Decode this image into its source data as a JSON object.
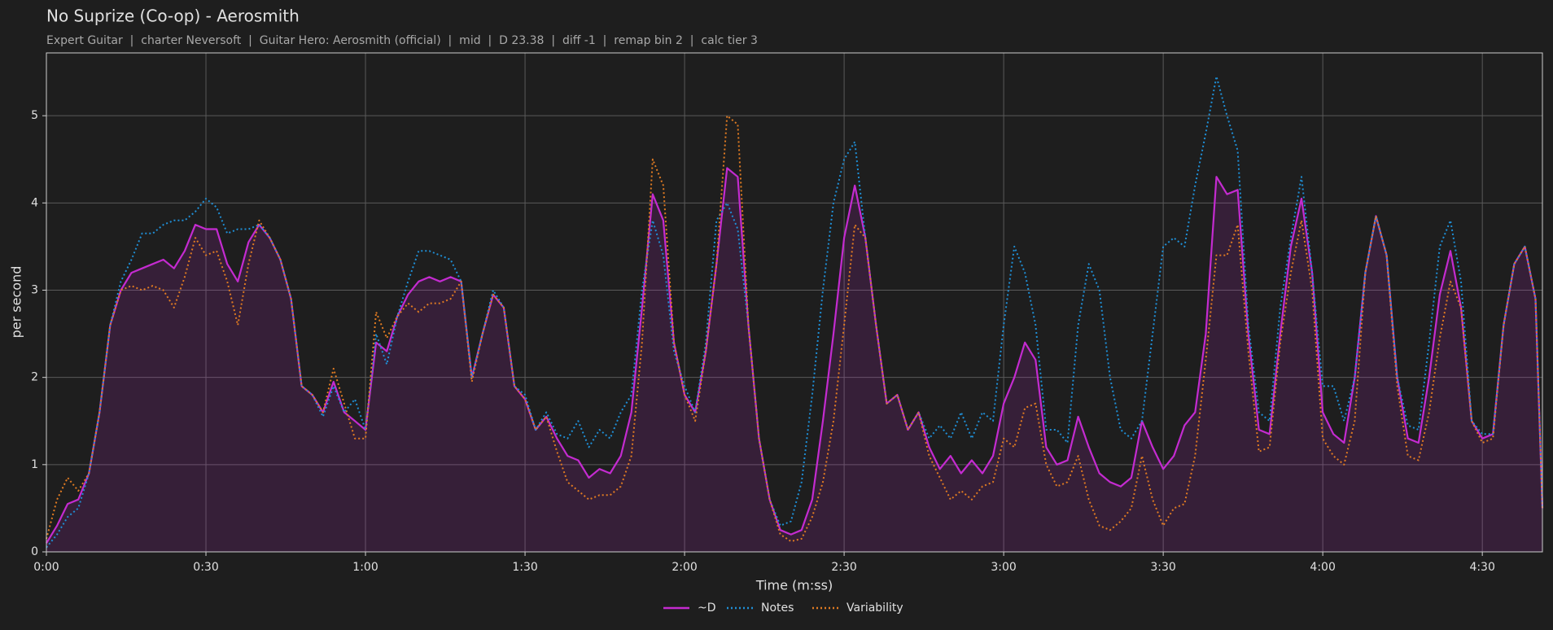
{
  "chart_data": {
    "type": "line",
    "title": "No Suprize (Co-op) - Aerosmith",
    "subtitle": "Expert Guitar  |  charter Neversoft  |  Guitar Hero: Aerosmith (official)  |  mid  |  D 23.38  |  diff -1  |  remap bin 2  |  calc tier 3",
    "x_label": "Time (m:ss)",
    "y_label": "per second",
    "xlim": [
      0,
      281.3
    ],
    "ylim": [
      0,
      5.72
    ],
    "xticks": [
      {
        "value": 0,
        "label": "0:00"
      },
      {
        "value": 30,
        "label": "0:30"
      },
      {
        "value": 60,
        "label": "1:00"
      },
      {
        "value": 90,
        "label": "1:30"
      },
      {
        "value": 120,
        "label": "2:00"
      },
      {
        "value": 150,
        "label": "2:30"
      },
      {
        "value": 180,
        "label": "3:00"
      },
      {
        "value": 210,
        "label": "3:30"
      },
      {
        "value": 240,
        "label": "4:00"
      },
      {
        "value": 270,
        "label": "4:30"
      }
    ],
    "yticks": [
      0,
      1,
      2,
      3,
      4,
      5
    ],
    "grid": true,
    "legend": "bottom",
    "x": [
      0,
      2,
      4,
      6,
      8,
      10,
      12,
      14,
      16,
      18,
      20,
      22,
      24,
      26,
      28,
      30,
      32,
      34,
      36,
      38,
      40,
      42,
      44,
      46,
      48,
      50,
      52,
      54,
      56,
      58,
      60,
      62,
      64,
      66,
      68,
      70,
      72,
      74,
      76,
      78,
      80,
      82,
      84,
      86,
      88,
      90,
      92,
      94,
      96,
      98,
      100,
      102,
      104,
      106,
      108,
      110,
      112,
      114,
      116,
      118,
      120,
      122,
      124,
      126,
      128,
      130,
      132,
      134,
      136,
      138,
      140,
      142,
      144,
      146,
      148,
      150,
      152,
      154,
      156,
      158,
      160,
      162,
      164,
      166,
      168,
      170,
      172,
      174,
      176,
      178,
      180,
      182,
      184,
      186,
      188,
      190,
      192,
      194,
      196,
      198,
      200,
      202,
      204,
      206,
      208,
      210,
      212,
      214,
      216,
      218,
      220,
      222,
      224,
      226,
      228,
      230,
      232,
      234,
      236,
      238,
      240,
      242,
      244,
      246,
      248,
      250,
      252,
      254,
      256,
      258,
      260,
      262,
      264,
      266,
      268,
      270,
      272,
      274,
      276,
      278,
      280,
      281.3
    ],
    "series": [
      {
        "name": "~D",
        "color": "#c42bd0",
        "dash": "solid",
        "fill": true,
        "values": [
          0.1,
          0.3,
          0.55,
          0.6,
          0.9,
          1.6,
          2.6,
          3.0,
          3.2,
          3.25,
          3.3,
          3.35,
          3.25,
          3.45,
          3.75,
          3.7,
          3.7,
          3.3,
          3.1,
          3.55,
          3.75,
          3.6,
          3.35,
          2.9,
          1.9,
          1.8,
          1.6,
          1.95,
          1.6,
          1.5,
          1.4,
          2.4,
          2.3,
          2.7,
          2.95,
          3.1,
          3.15,
          3.1,
          3.15,
          3.1,
          2.0,
          2.5,
          2.95,
          2.8,
          1.9,
          1.75,
          1.4,
          1.55,
          1.3,
          1.1,
          1.05,
          0.85,
          0.95,
          0.9,
          1.1,
          1.6,
          2.8,
          4.1,
          3.8,
          2.4,
          1.8,
          1.6,
          2.3,
          3.3,
          4.4,
          4.3,
          2.6,
          1.3,
          0.6,
          0.25,
          0.2,
          0.25,
          0.6,
          1.5,
          2.5,
          3.6,
          4.2,
          3.6,
          2.6,
          1.7,
          1.8,
          1.4,
          1.6,
          1.2,
          0.95,
          1.1,
          0.9,
          1.05,
          0.9,
          1.1,
          1.7,
          2.0,
          2.4,
          2.2,
          1.2,
          1.0,
          1.05,
          1.55,
          1.2,
          0.9,
          0.8,
          0.75,
          0.85,
          1.5,
          1.2,
          0.95,
          1.1,
          1.45,
          1.6,
          2.5,
          4.3,
          4.1,
          4.15,
          2.5,
          1.4,
          1.35,
          2.5,
          3.5,
          4.05,
          3.2,
          1.6,
          1.35,
          1.25,
          2.0,
          3.2,
          3.85,
          3.4,
          2.0,
          1.3,
          1.25,
          2.0,
          2.95,
          3.45,
          2.8,
          1.5,
          1.3,
          1.35,
          2.6,
          3.3,
          3.5,
          2.9,
          0.5
        ]
      },
      {
        "name": "Notes",
        "color": "#1f8fd6",
        "dash": "dotted",
        "fill": false,
        "values": [
          0.05,
          0.2,
          0.4,
          0.5,
          0.9,
          1.6,
          2.6,
          3.1,
          3.35,
          3.65,
          3.65,
          3.75,
          3.8,
          3.8,
          3.9,
          4.05,
          3.95,
          3.65,
          3.7,
          3.7,
          3.75,
          3.6,
          3.35,
          2.9,
          1.9,
          1.8,
          1.55,
          1.9,
          1.6,
          1.75,
          1.4,
          2.5,
          2.15,
          2.7,
          3.1,
          3.45,
          3.45,
          3.4,
          3.35,
          3.1,
          2.0,
          2.5,
          3.0,
          2.8,
          1.9,
          1.8,
          1.4,
          1.6,
          1.35,
          1.3,
          1.5,
          1.2,
          1.4,
          1.3,
          1.6,
          1.8,
          3.0,
          3.8,
          3.4,
          2.3,
          1.9,
          1.6,
          2.4,
          3.8,
          4.0,
          3.7,
          2.6,
          1.3,
          0.6,
          0.3,
          0.35,
          0.8,
          1.8,
          3.0,
          4.0,
          4.5,
          4.7,
          3.6,
          2.6,
          1.7,
          1.8,
          1.4,
          1.6,
          1.3,
          1.45,
          1.3,
          1.6,
          1.3,
          1.6,
          1.5,
          2.6,
          3.5,
          3.2,
          2.6,
          1.4,
          1.4,
          1.25,
          2.6,
          3.3,
          3.0,
          2.0,
          1.4,
          1.3,
          1.5,
          2.5,
          3.5,
          3.6,
          3.5,
          4.2,
          4.8,
          5.45,
          5.0,
          4.6,
          2.6,
          1.6,
          1.5,
          2.8,
          3.6,
          4.3,
          3.2,
          1.9,
          1.9,
          1.5,
          2.0,
          3.2,
          3.85,
          3.4,
          2.0,
          1.45,
          1.4,
          2.4,
          3.5,
          3.8,
          3.1,
          1.5,
          1.35,
          1.35,
          2.6,
          3.3,
          3.5,
          2.9,
          0.5
        ]
      },
      {
        "name": "Variability",
        "color": "#e07b22",
        "dash": "dotted",
        "fill": false,
        "values": [
          0.15,
          0.6,
          0.85,
          0.7,
          0.9,
          1.6,
          2.6,
          3.0,
          3.05,
          3.0,
          3.05,
          3.0,
          2.8,
          3.15,
          3.6,
          3.4,
          3.45,
          3.1,
          2.6,
          3.3,
          3.8,
          3.6,
          3.35,
          2.9,
          1.9,
          1.8,
          1.6,
          2.1,
          1.7,
          1.3,
          1.3,
          2.75,
          2.45,
          2.7,
          2.85,
          2.75,
          2.85,
          2.85,
          2.9,
          3.1,
          1.95,
          2.5,
          2.95,
          2.8,
          1.9,
          1.75,
          1.4,
          1.55,
          1.15,
          0.8,
          0.7,
          0.6,
          0.65,
          0.65,
          0.75,
          1.1,
          2.4,
          4.5,
          4.2,
          2.4,
          1.8,
          1.5,
          2.3,
          3.3,
          5.0,
          4.9,
          2.6,
          1.3,
          0.6,
          0.2,
          0.12,
          0.15,
          0.4,
          0.8,
          1.5,
          2.6,
          3.75,
          3.6,
          2.6,
          1.7,
          1.8,
          1.4,
          1.6,
          1.1,
          0.85,
          0.6,
          0.7,
          0.6,
          0.75,
          0.8,
          1.3,
          1.2,
          1.65,
          1.7,
          1.0,
          0.75,
          0.8,
          1.1,
          0.6,
          0.3,
          0.25,
          0.35,
          0.5,
          1.1,
          0.6,
          0.3,
          0.5,
          0.55,
          1.1,
          2.2,
          3.4,
          3.4,
          3.75,
          2.3,
          1.15,
          1.2,
          2.4,
          3.2,
          3.8,
          3.0,
          1.3,
          1.1,
          1.0,
          1.5,
          3.2,
          3.85,
          3.4,
          1.9,
          1.1,
          1.05,
          1.6,
          2.45,
          3.1,
          2.8,
          1.5,
          1.25,
          1.3,
          2.6,
          3.3,
          3.5,
          2.9,
          0.5
        ]
      }
    ]
  }
}
